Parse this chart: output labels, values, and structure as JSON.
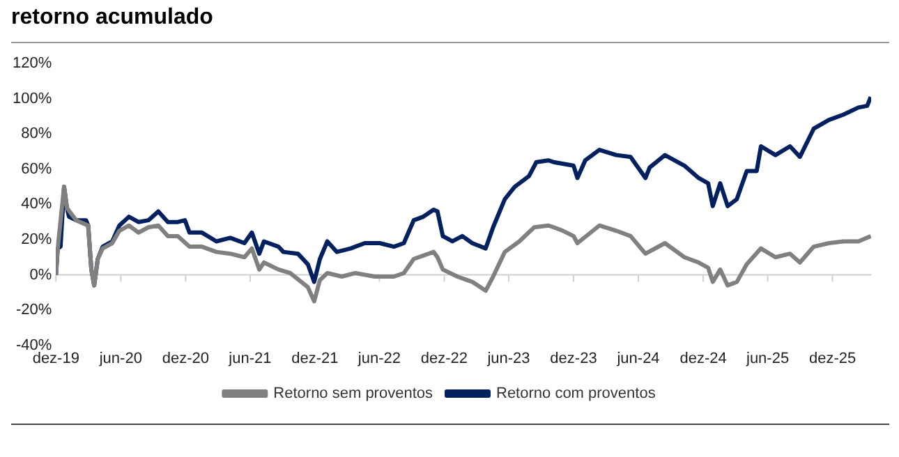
{
  "chart_data": {
    "type": "line",
    "title": "retorno acumulado",
    "legend": "bottom",
    "marker": "none",
    "line_style": "solid",
    "xlim": [
      "2019-12-01",
      "2026-03-20"
    ],
    "ylim": [
      -40,
      120
    ],
    "xticks": [
      {
        "value": "2019-12",
        "label": "dez-19"
      },
      {
        "value": "2020-06",
        "label": "jun-20"
      },
      {
        "value": "2020-12",
        "label": "dez-20"
      },
      {
        "value": "2021-06",
        "label": "jun-21"
      },
      {
        "value": "2021-12",
        "label": "dez-21"
      },
      {
        "value": "2022-06",
        "label": "jun-22"
      },
      {
        "value": "2022-12",
        "label": "dez-22"
      },
      {
        "value": "2023-06",
        "label": "jun-23"
      },
      {
        "value": "2023-12",
        "label": "dez-23"
      },
      {
        "value": "2024-06",
        "label": "jun-24"
      },
      {
        "value": "2024-12",
        "label": "dez-24"
      },
      {
        "value": "2025-06",
        "label": "jun-25"
      },
      {
        "value": "2025-12",
        "label": "dez-25"
      }
    ],
    "yticks": [
      {
        "value": -40,
        "label": "-40%"
      },
      {
        "value": -20,
        "label": "-20%"
      },
      {
        "value": 0,
        "label": "0%"
      },
      {
        "value": 20,
        "label": "20%"
      },
      {
        "value": 40,
        "label": "40%"
      },
      {
        "value": 60,
        "label": "60%"
      },
      {
        "value": 80,
        "label": "80%"
      },
      {
        "value": 100,
        "label": "100%"
      },
      {
        "value": 120,
        "label": "120%"
      }
    ],
    "series": [
      {
        "name": "Retorno sem proventos",
        "color": "#808080",
        "x": [
          "2019-12-01",
          "2019-12-06",
          "2019-12-24",
          "2020-01-01",
          "2020-01-27",
          "2020-03-01",
          "2020-03-10",
          "2020-03-18",
          "2020-03-28",
          "2020-04-11",
          "2020-05-08",
          "2020-05-28",
          "2020-06-24",
          "2020-07-21",
          "2020-08-18",
          "2020-09-15",
          "2020-10-12",
          "2020-11-09",
          "2020-12-12",
          "2021-01-16",
          "2021-02-26",
          "2021-04-06",
          "2021-05-16",
          "2021-06-06",
          "2021-06-27",
          "2021-07-10",
          "2021-08-20",
          "2021-09-22",
          "2021-11-11",
          "2021-11-29",
          "2021-12-15",
          "2022-01-05",
          "2022-02-15",
          "2022-03-25",
          "2022-05-19",
          "2022-07-12",
          "2022-08-09",
          "2022-09-06",
          "2022-11-01",
          "2022-11-12",
          "2022-11-27",
          "2023-01-07",
          "2023-02-18",
          "2023-03-28",
          "2023-04-18",
          "2023-05-21",
          "2023-07-01",
          "2023-08-12",
          "2023-09-21",
          "2023-10-06",
          "2023-11-01",
          "2023-12-01",
          "2023-12-12",
          "2024-02-12",
          "2024-03-31",
          "2024-05-10",
          "2024-06-21",
          "2024-08-15",
          "2024-10-09",
          "2024-11-18",
          "2024-12-15",
          "2024-12-28",
          "2025-01-18",
          "2025-02-08",
          "2025-03-06",
          "2025-04-03",
          "2025-05-13",
          "2025-06-23",
          "2025-08-03",
          "2025-08-31",
          "2025-10-09",
          "2025-11-21",
          "2026-01-01",
          "2026-02-12",
          "2026-03-19"
        ],
        "values": [
          0,
          15,
          50,
          38,
          31,
          28,
          3,
          -6,
          9,
          15,
          18,
          25,
          28,
          24,
          27,
          28,
          22,
          22,
          16,
          16,
          13,
          12,
          10,
          15,
          3,
          7,
          3,
          1,
          -7,
          -15,
          -3,
          1,
          -1,
          1,
          -1,
          -1,
          1,
          9,
          13,
          10,
          3,
          -1,
          -4,
          -9,
          -1,
          13,
          19,
          27,
          28,
          27,
          25,
          22,
          18,
          28,
          25,
          22,
          12,
          18,
          10,
          7,
          4,
          -4,
          3,
          -6,
          -4,
          6,
          15,
          10,
          12,
          7,
          16,
          18,
          19,
          19,
          22
        ]
      },
      {
        "name": "Retorno com proventos",
        "color": "#002060",
        "x": [
          "2019-12-01",
          "2019-12-06",
          "2019-12-14",
          "2019-12-24",
          "2020-01-01",
          "2020-01-07",
          "2020-01-27",
          "2020-02-24",
          "2020-03-01",
          "2020-03-10",
          "2020-03-18",
          "2020-03-28",
          "2020-04-11",
          "2020-05-08",
          "2020-05-28",
          "2020-06-24",
          "2020-07-21",
          "2020-08-18",
          "2020-09-15",
          "2020-10-12",
          "2020-11-09",
          "2020-11-29",
          "2020-12-12",
          "2021-01-16",
          "2021-02-26",
          "2021-04-06",
          "2021-05-16",
          "2021-06-06",
          "2021-06-27",
          "2021-07-10",
          "2021-08-20",
          "2021-09-03",
          "2021-10-14",
          "2021-11-11",
          "2021-11-29",
          "2021-12-15",
          "2022-01-05",
          "2022-02-01",
          "2022-03-12",
          "2022-04-21",
          "2022-06-02",
          "2022-07-12",
          "2022-08-09",
          "2022-09-06",
          "2022-10-03",
          "2022-11-01",
          "2022-11-12",
          "2022-11-27",
          "2022-12-24",
          "2023-01-21",
          "2023-02-18",
          "2023-03-28",
          "2023-04-18",
          "2023-05-21",
          "2023-06-18",
          "2023-07-28",
          "2023-08-18",
          "2023-09-21",
          "2023-10-06",
          "2023-12-01",
          "2023-12-12",
          "2024-01-03",
          "2024-02-12",
          "2024-03-31",
          "2024-05-10",
          "2024-06-21",
          "2024-07-03",
          "2024-08-15",
          "2024-10-09",
          "2024-11-18",
          "2024-12-15",
          "2024-12-28",
          "2025-01-18",
          "2025-02-08",
          "2025-03-06",
          "2025-04-03",
          "2025-05-01",
          "2025-05-13",
          "2025-06-23",
          "2025-08-03",
          "2025-08-31",
          "2025-10-09",
          "2025-11-21",
          "2026-01-01",
          "2026-02-12",
          "2026-03-09",
          "2026-03-19"
        ],
        "values": [
          0,
          15,
          16,
          50,
          38,
          33,
          31,
          31,
          28,
          3,
          -6,
          9,
          16,
          19,
          28,
          33,
          30,
          31,
          36,
          30,
          30,
          31,
          24,
          24,
          19,
          21,
          18,
          24,
          12,
          19,
          16,
          13,
          12,
          6,
          -4,
          9,
          19,
          13,
          15,
          18,
          18,
          16,
          18,
          31,
          33,
          37,
          36,
          22,
          19,
          22,
          18,
          15,
          27,
          43,
          50,
          56,
          64,
          65,
          64,
          62,
          55,
          65,
          71,
          68,
          67,
          55,
          61,
          68,
          62,
          55,
          52,
          39,
          52,
          39,
          43,
          59,
          59,
          73,
          68,
          73,
          67,
          83,
          88,
          91,
          95,
          96,
          101
        ]
      }
    ]
  }
}
